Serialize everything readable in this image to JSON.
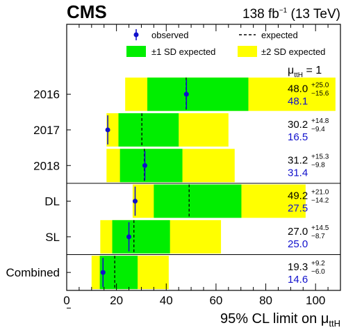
{
  "chart_data": {
    "type": "limit-band",
    "experiment": "CMS",
    "lumi_main": "138 fb",
    "lumi_exp": "−1",
    "lumi_energy": " (13 TeV)",
    "xlabel_main": "95% CL limit on μ",
    "xlabel_sub": "ttH",
    "xlim": [
      0,
      110
    ],
    "xticks": [
      "0",
      "20",
      "40",
      "60",
      "80",
      "100"
    ],
    "xtick_values": [
      0,
      20,
      40,
      60,
      80,
      100
    ],
    "mu_label_main": "μ",
    "mu_label_sub": "ttH",
    "mu_label_eq": " = 1",
    "legend": {
      "observed": "observed",
      "expected": "expected",
      "one_sd": "±1 SD expected",
      "two_sd": "±2 SD expected"
    },
    "colors": {
      "observed": "#1010cc",
      "one_sd": "#00ee00",
      "two_sd": "#ffff00",
      "signal_injected": "#1010cc"
    },
    "categories": [
      {
        "label": "2016",
        "expected": 48.0,
        "up": "+25.0",
        "down": "−15.6",
        "observed": 48.1,
        "exp_text": "48.0",
        "obs_text": "48.1",
        "band1": [
          32.4,
          73.0
        ],
        "band2": [
          23.5,
          108.0
        ]
      },
      {
        "label": "2017",
        "expected": 30.2,
        "up": "+14.8",
        "down": "−9.4",
        "observed": 16.5,
        "exp_text": "30.2",
        "obs_text": "16.5",
        "band1": [
          20.8,
          45.0
        ],
        "band2": [
          16.0,
          65.0
        ]
      },
      {
        "label": "2018",
        "expected": 31.2,
        "up": "+15.3",
        "down": "−9.8",
        "observed": 31.4,
        "exp_text": "31.2",
        "obs_text": "31.4",
        "band1": [
          21.4,
          46.5
        ],
        "band2": [
          16.0,
          67.5
        ]
      },
      {
        "label": "DL",
        "expected": 49.2,
        "up": "+21.0",
        "down": "−14.2",
        "observed": 27.5,
        "exp_text": "49.2",
        "obs_text": "27.5",
        "band1": [
          35.0,
          70.2
        ],
        "band2": [
          26.5,
          96.0
        ]
      },
      {
        "label": "SL",
        "expected": 27.0,
        "up": "+14.5",
        "down": "−8.7",
        "observed": 25.0,
        "exp_text": "27.0",
        "obs_text": "25.0",
        "band1": [
          18.3,
          41.5
        ],
        "band2": [
          13.5,
          62.0
        ]
      },
      {
        "label": "Combined",
        "expected": 19.3,
        "up": "+9.2",
        "down": "−6.0",
        "observed": 14.6,
        "exp_text": "19.3",
        "obs_text": "14.6",
        "band1": [
          13.3,
          28.5
        ],
        "band2": [
          10.0,
          41.0
        ]
      }
    ],
    "separators_after": [
      2,
      4
    ]
  }
}
